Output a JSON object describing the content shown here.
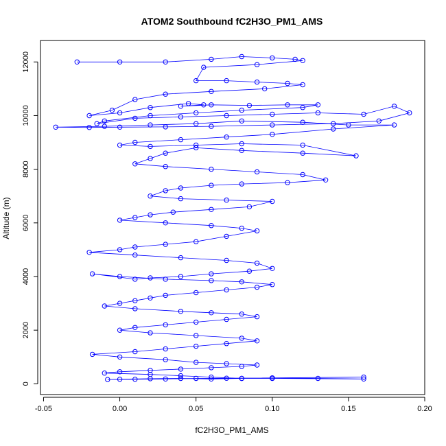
{
  "chart_data": {
    "type": "scatter",
    "title": "ATOM2 Southbound fC2H3O_PM1_AMS",
    "xlabel": "fC2H3O_PM1_AMS",
    "ylabel": "Altitude (m)",
    "xlim": [
      -0.052,
      0.2
    ],
    "ylim": [
      -400,
      12800
    ],
    "x_ticks": [
      -0.05,
      0.0,
      0.05,
      0.1,
      0.15,
      0.2
    ],
    "x_tick_labels": [
      "-0.05",
      "0.00",
      "0.05",
      "0.10",
      "0.15",
      "0.20"
    ],
    "y_ticks": [
      0,
      2000,
      4000,
      6000,
      8000,
      10000,
      12000
    ],
    "y_tick_labels": [
      "0",
      "2000",
      "4000",
      "6000",
      "8000",
      "10000",
      "12000"
    ],
    "grid": false,
    "legend": "none",
    "marker": "open-circle",
    "connected_line": true,
    "series_color": "#0000ff",
    "series": [
      {
        "x": [
          -0.028,
          0.0,
          0.03,
          0.06,
          0.08,
          0.1,
          0.115,
          0.12,
          0.09,
          0.055,
          0.05,
          0.07,
          0.09,
          0.11,
          0.12,
          0.095,
          0.06,
          0.03,
          0.01,
          -0.005,
          -0.02,
          0.0,
          0.02,
          0.045,
          0.055,
          0.04,
          0.06,
          0.085,
          0.11,
          0.13,
          0.12,
          0.08,
          0.05,
          0.02,
          -0.01,
          -0.015,
          0.01,
          0.04,
          0.07,
          0.1,
          0.13,
          0.16,
          0.18,
          0.19,
          0.17,
          0.14,
          0.1,
          0.06,
          0.03,
          0.0,
          -0.02,
          -0.042,
          -0.01,
          0.02,
          0.05,
          0.08,
          0.12,
          0.15,
          0.18,
          0.14,
          0.1,
          0.07,
          0.04,
          0.01,
          0.0,
          0.02,
          0.05,
          0.08,
          0.12,
          0.155,
          0.12,
          0.08,
          0.05,
          0.03,
          0.02,
          0.01,
          0.03,
          0.06,
          0.09,
          0.12,
          0.135,
          0.11,
          0.08,
          0.06,
          0.04,
          0.03,
          0.02,
          0.04,
          0.07,
          0.1,
          0.085,
          0.06,
          0.035,
          0.02,
          0.01,
          0.0,
          0.03,
          0.06,
          0.08,
          0.09,
          0.07,
          0.05,
          0.03,
          0.01,
          0.0,
          -0.02,
          0.01,
          0.04,
          0.07,
          0.09,
          0.1,
          0.085,
          0.06,
          0.04,
          0.02,
          0.01,
          -0.018,
          0.0,
          0.03,
          0.06,
          0.08,
          0.1,
          0.09,
          0.07,
          0.05,
          0.03,
          0.02,
          0.01,
          0.0,
          -0.01,
          0.01,
          0.04,
          0.06,
          0.08,
          0.09,
          0.07,
          0.05,
          0.03,
          0.01,
          0.0,
          0.02,
          0.05,
          0.08,
          0.09,
          0.07,
          0.05,
          0.03,
          0.01,
          -0.018,
          0.0,
          0.03,
          0.05,
          0.07,
          0.09,
          0.08,
          0.06,
          0.04,
          0.02,
          0.0,
          -0.01,
          0.02,
          0.04,
          0.06,
          0.08,
          0.1,
          0.16,
          0.13,
          0.1,
          0.08,
          0.06,
          0.04,
          0.02,
          0.0,
          -0.008,
          0.01,
          0.03,
          0.05,
          0.07,
          0.1,
          0.16
        ],
        "y": [
          12000,
          12000,
          12000,
          12100,
          12200,
          12150,
          12100,
          12050,
          11900,
          11800,
          11300,
          11300,
          11250,
          11200,
          11150,
          11000,
          10900,
          10800,
          10600,
          10200,
          10000,
          10100,
          10300,
          10450,
          10400,
          10350,
          10400,
          10380,
          10400,
          10400,
          10300,
          10200,
          10100,
          10000,
          9800,
          9700,
          9900,
          9950,
          10000,
          10050,
          10100,
          10050,
          10350,
          10100,
          9800,
          9700,
          9650,
          9600,
          9580,
          9570,
          9560,
          9570,
          9600,
          9650,
          9700,
          9800,
          9750,
          9650,
          9650,
          9500,
          9300,
          9200,
          9100,
          9000,
          8900,
          8850,
          8900,
          8950,
          8900,
          8500,
          8600,
          8700,
          8800,
          8600,
          8400,
          8200,
          8100,
          8000,
          7900,
          7800,
          7600,
          7500,
          7450,
          7400,
          7300,
          7200,
          7000,
          6900,
          6850,
          6800,
          6600,
          6500,
          6400,
          6300,
          6200,
          6100,
          6000,
          5900,
          5800,
          5700,
          5500,
          5300,
          5200,
          5100,
          5000,
          4900,
          4800,
          4700,
          4600,
          4500,
          4300,
          4200,
          4100,
          4000,
          3950,
          3900,
          4100,
          4000,
          3900,
          3850,
          3800,
          3700,
          3600,
          3500,
          3400,
          3300,
          3200,
          3100,
          3000,
          2900,
          2800,
          2700,
          2650,
          2600,
          2500,
          2400,
          2300,
          2200,
          2100,
          2000,
          1900,
          1800,
          1700,
          1600,
          1500,
          1400,
          1300,
          1200,
          1100,
          1000,
          900,
          800,
          750,
          700,
          650,
          600,
          550,
          500,
          450,
          400,
          350,
          300,
          250,
          200,
          200,
          180,
          200,
          220,
          200,
          180,
          200,
          190,
          170,
          160,
          170,
          180,
          200,
          210,
          220,
          250
        ]
      }
    ]
  }
}
